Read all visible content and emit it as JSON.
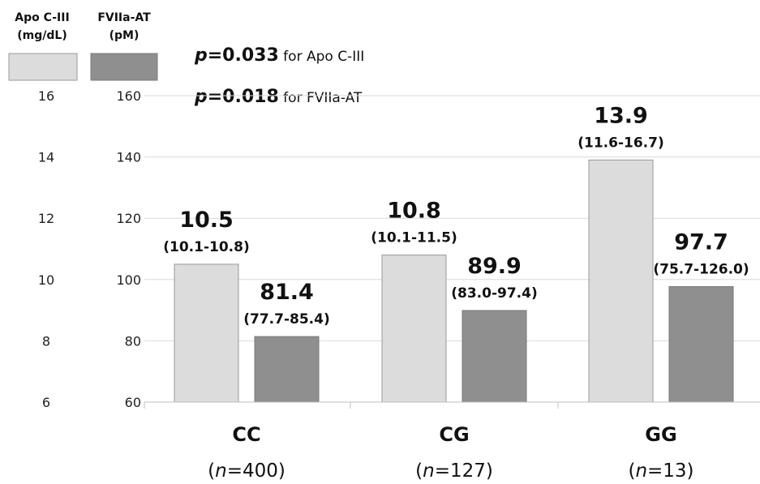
{
  "chart_data": {
    "type": "bar",
    "title": "",
    "xlabel": "",
    "categories": [
      "CC",
      "CG",
      "GG"
    ],
    "category_n": [
      "(n=400)",
      "(n=127)",
      "(n=13)"
    ],
    "n_prefix": "(",
    "n_italic": "n",
    "n_values": [
      "=400)",
      "=127)",
      "=13)"
    ],
    "left_axis": {
      "title_line1": "Apo C-III",
      "title_line2": "(mg/dL)",
      "ylim": [
        6,
        16
      ],
      "ticks": [
        "16",
        "14",
        "12",
        "10",
        "8",
        "6"
      ],
      "tick_values": [
        16,
        14,
        12,
        10,
        8,
        6
      ]
    },
    "right_axis": {
      "title_line1": "FVIIa-AT",
      "title_line2": "(pM)",
      "ylim": [
        60,
        160
      ],
      "ticks": [
        "160",
        "140",
        "120",
        "100",
        "80",
        "60"
      ],
      "tick_values": [
        160,
        140,
        120,
        100,
        80,
        60
      ]
    },
    "grid": true,
    "legend_placement": "top-left",
    "series": [
      {
        "name": "Apo C-III",
        "axis": "left",
        "color": "#dcdcdc",
        "values": [
          10.5,
          10.8,
          13.9
        ],
        "value_labels": [
          "10.5",
          "10.8",
          "13.9"
        ],
        "ci_labels": [
          "(10.1-10.8)",
          "(10.1-11.5)",
          "(11.6-16.7)"
        ]
      },
      {
        "name": "FVIIa-AT",
        "axis": "right",
        "color": "#8f8f8f",
        "values": [
          81.4,
          89.9,
          97.7
        ],
        "value_labels": [
          "81.4",
          "89.9",
          "97.7"
        ],
        "ci_labels": [
          "(77.7-85.4)",
          "(83.0-97.4)",
          "(75.7-126.0)"
        ]
      }
    ],
    "annotations": [
      {
        "bold": "p",
        "value": "=0.033",
        "text": " for Apo C-III"
      },
      {
        "bold": "p",
        "value": "=0.018",
        "text": " for FVIIa-AT"
      }
    ]
  }
}
